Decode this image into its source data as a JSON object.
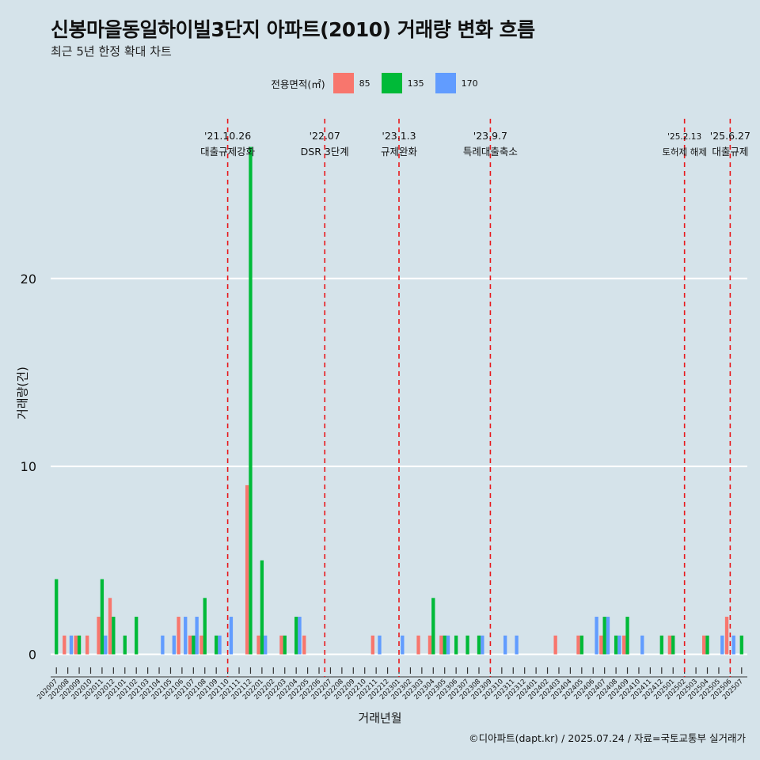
{
  "header": {
    "title": "신봉마을동일하이빌3단지 아파트(2010) 거래량 변화 흐름",
    "subtitle": "최근 5년 한정 확대 차트"
  },
  "legend": {
    "title": "전용면적(㎡)",
    "items": [
      {
        "label": "85",
        "color": "#F8766D"
      },
      {
        "label": "135",
        "color": "#00BA38"
      },
      {
        "label": "170",
        "color": "#619CFF"
      }
    ]
  },
  "caption": "©디아파트(dapt.kr) / 2025.07.24 / 자료=국토교통부 실거래가",
  "chart_data": {
    "type": "bar",
    "title": "신봉마을동일하이빌3단지 아파트(2010) 거래량 변화 흐름",
    "subtitle": "최근 5년 한정 확대 차트",
    "xlabel": "거래년월",
    "ylabel": "거래량(건)",
    "y_ticks": [
      0,
      10,
      20
    ],
    "ylim": [
      -1.2,
      28.5
    ],
    "grid": true,
    "legend_position": "top",
    "categories": [
      "202007",
      "202008",
      "202009",
      "202010",
      "202011",
      "202012",
      "202101",
      "202102",
      "202103",
      "202104",
      "202105",
      "202106",
      "202107",
      "202108",
      "202109",
      "202110",
      "202111",
      "202112",
      "202201",
      "202202",
      "202203",
      "202204",
      "202205",
      "202206",
      "202207",
      "202208",
      "202209",
      "202210",
      "202211",
      "202212",
      "202301",
      "202302",
      "202303",
      "202304",
      "202305",
      "202306",
      "202307",
      "202308",
      "202309",
      "202310",
      "202311",
      "202312",
      "202401",
      "202402",
      "202403",
      "202404",
      "202405",
      "202406",
      "202407",
      "202408",
      "202409",
      "202410",
      "202411",
      "202412",
      "202501",
      "202502",
      "202503",
      "202504",
      "202505",
      "202506",
      "202507"
    ],
    "series": [
      {
        "name": "85",
        "values": [
          0,
          1,
          1,
          1,
          2,
          3,
          0,
          0,
          0,
          0,
          0,
          2,
          1,
          1,
          0,
          0,
          0,
          9,
          1,
          0,
          1,
          0,
          1,
          0,
          0,
          0,
          0,
          0,
          1,
          0,
          0,
          0,
          1,
          1,
          1,
          0,
          0,
          0,
          0,
          0,
          0,
          0,
          0,
          0,
          1,
          0,
          1,
          0,
          1,
          0,
          1,
          0,
          0,
          0,
          1,
          0,
          0,
          1,
          0,
          2,
          0
        ]
      },
      {
        "name": "135",
        "values": [
          4,
          0,
          1,
          0,
          4,
          2,
          1,
          2,
          0,
          0,
          0,
          0,
          1,
          3,
          1,
          0,
          0,
          27,
          5,
          0,
          1,
          2,
          0,
          0,
          0,
          0,
          0,
          0,
          0,
          0,
          0,
          0,
          0,
          3,
          1,
          1,
          1,
          1,
          0,
          0,
          0,
          0,
          0,
          0,
          0,
          0,
          1,
          0,
          2,
          1,
          2,
          0,
          0,
          1,
          1,
          0,
          0,
          1,
          0,
          0,
          1
        ]
      },
      {
        "name": "170",
        "values": [
          0,
          1,
          0,
          0,
          1,
          0,
          0,
          0,
          0,
          1,
          1,
          2,
          2,
          0,
          1,
          2,
          0,
          0,
          1,
          0,
          0,
          2,
          0,
          0,
          0,
          0,
          0,
          0,
          1,
          0,
          1,
          0,
          0,
          0,
          1,
          0,
          0,
          1,
          0,
          1,
          1,
          0,
          0,
          0,
          0,
          0,
          0,
          2,
          2,
          1,
          0,
          1,
          0,
          0,
          0,
          0,
          0,
          0,
          1,
          1,
          0
        ]
      }
    ],
    "events": [
      {
        "after": "202110",
        "offset": 0.0,
        "date": "'21.10.26",
        "label": "대출규제강화"
      },
      {
        "after": "202207",
        "offset": -0.5,
        "date": "'22.07",
        "label": "DSR 3단계"
      },
      {
        "after": "202301",
        "offset": 0.0,
        "date": "'23.1.3",
        "label": "규제완화"
      },
      {
        "after": "202309",
        "offset": 0.0,
        "date": "'23.9.7",
        "label": "특례대출축소"
      },
      {
        "after": "202502",
        "offset": 0.0,
        "date": "'25.2.13",
        "label": "토허제 해제"
      },
      {
        "after": "202506",
        "offset": 0.0,
        "date": "'25.6.27",
        "label": "대출규제"
      }
    ]
  }
}
